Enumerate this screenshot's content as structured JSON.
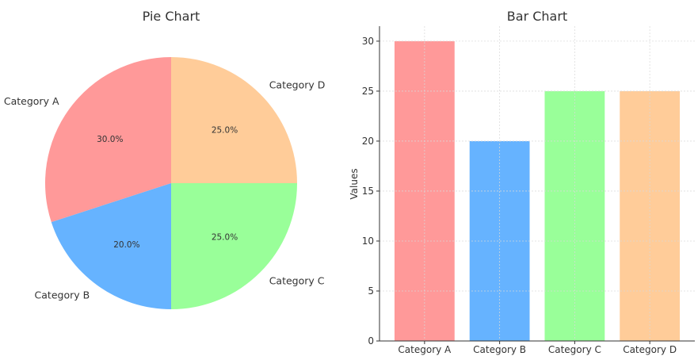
{
  "chart_data": [
    {
      "type": "pie",
      "title": "Pie Chart",
      "categories": [
        "Category A",
        "Category B",
        "Category C",
        "Category D"
      ],
      "values": [
        30,
        20,
        25,
        25
      ],
      "percent_labels": [
        "30.0%",
        "20.0%",
        "25.0%",
        "25.0%"
      ],
      "colors": [
        "#ff9999",
        "#66b3ff",
        "#99ff99",
        "#ffcc99"
      ]
    },
    {
      "type": "bar",
      "title": "Bar Chart",
      "categories": [
        "Category A",
        "Category B",
        "Category C",
        "Category D"
      ],
      "values": [
        30,
        20,
        25,
        25
      ],
      "colors": [
        "#ff9999",
        "#66b3ff",
        "#99ff99",
        "#ffcc99"
      ],
      "xlabel": "",
      "ylabel": "Values",
      "ylim": [
        0,
        31.5
      ],
      "yticks": [
        0,
        5,
        10,
        15,
        20,
        25,
        30
      ],
      "grid": true
    }
  ]
}
